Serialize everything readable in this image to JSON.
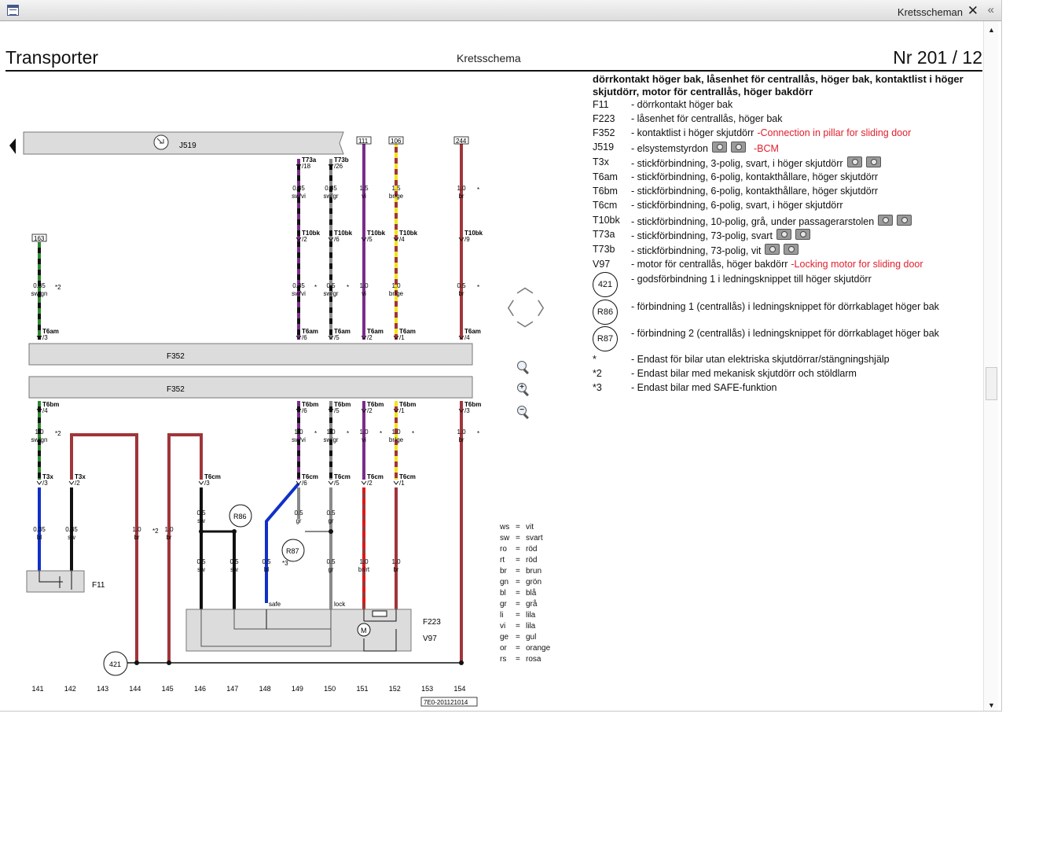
{
  "window": {
    "title": "Kretsscheman",
    "close_glyph": "✕",
    "collapse_glyph": "«"
  },
  "header": {
    "vehicle": "Transporter",
    "doc_type": "Kretsschema",
    "number": "Nr  201 / 12"
  },
  "legend": {
    "title": "dörrkontakt höger bak, låsenhet för centrallås, höger bak, kontaktlist i höger skjutdörr, motor för centrallås, höger bakdörr",
    "items": [
      {
        "code": "F11",
        "desc": "- dörrkontakt höger bak",
        "note": "",
        "cams": 0
      },
      {
        "code": "F223",
        "desc": "- låsenhet för centrallås, höger bak",
        "note": "",
        "cams": 0
      },
      {
        "code": "F352",
        "desc": "- kontaktlist i höger skjutdörr",
        "note": "-Connection in pillar for sliding door",
        "cams": 0
      },
      {
        "code": "J519",
        "desc": "- elsystemstyrdon",
        "note": "-BCM",
        "cams": 2
      },
      {
        "code": "T3x",
        "desc": "- stickförbindning, 3-polig, svart, i höger skjutdörr",
        "note": "",
        "cams": 2
      },
      {
        "code": "T6am",
        "desc": "- stickförbindning, 6-polig, kontakthållare, höger skjutdörr",
        "note": "",
        "cams": 0
      },
      {
        "code": "T6bm",
        "desc": "- stickförbindning, 6-polig, kontakthållare, höger skjutdörr",
        "note": "",
        "cams": 0
      },
      {
        "code": "T6cm",
        "desc": "- stickförbindning, 6-polig, svart, i höger skjutdörr",
        "note": "",
        "cams": 0
      },
      {
        "code": "T10bk",
        "desc": "- stickförbindning, 10-polig, grå, under passagerarstolen",
        "note": "",
        "cams": 2
      },
      {
        "code": "T73a",
        "desc": "- stickförbindning, 73-polig, svart",
        "note": "",
        "cams": 2
      },
      {
        "code": "T73b",
        "desc": "- stickförbindning, 73-polig, vit",
        "note": "",
        "cams": 2
      },
      {
        "code": "V97",
        "desc": "- motor för centrallås, höger bakdörr",
        "note": "-Locking motor for sliding door",
        "cams": 0
      }
    ],
    "circled": [
      {
        "code": "421",
        "desc": "- godsförbindning 1 i ledningsknippet till höger skjutdörr"
      },
      {
        "code": "R86",
        "desc": "- förbindning 1 (centrallås) i ledningsknippet för dörrkablaget höger bak"
      },
      {
        "code": "R87",
        "desc": "- förbindning 2 (centrallås) i ledningsknippet för dörrkablaget höger bak"
      }
    ],
    "footnotes": [
      {
        "mark": "*",
        "desc": "- Endast för bilar utan elektriska skjutdörrar/stängningshjälp"
      },
      {
        "mark": "*2",
        "desc": "- Endast bilar med mekanisk skjutdörr och stöldlarm"
      },
      {
        "mark": "*3",
        "desc": "- Endast bilar med SAFE-funktion"
      }
    ]
  },
  "color_key": [
    {
      "ab": "ws",
      "name": "vit"
    },
    {
      "ab": "sw",
      "name": "svart"
    },
    {
      "ab": "ro",
      "name": "röd"
    },
    {
      "ab": "rt",
      "name": "röd"
    },
    {
      "ab": "br",
      "name": "brun"
    },
    {
      "ab": "gn",
      "name": "grön"
    },
    {
      "ab": "bl",
      "name": "blå"
    },
    {
      "ab": "gr",
      "name": "grå"
    },
    {
      "ab": "li",
      "name": "lila"
    },
    {
      "ab": "vi",
      "name": "lila"
    },
    {
      "ab": "ge",
      "name": "gul"
    },
    {
      "ab": "or",
      "name": "orange"
    },
    {
      "ab": "rs",
      "name": "rosa"
    }
  ],
  "diagram": {
    "components": {
      "j519": "J519",
      "f352_top": "F352",
      "f352_bottom": "F352",
      "f11": "F11",
      "f223": "F223",
      "v97": "V97",
      "motor": "M",
      "r86": "R86",
      "r87": "R87",
      "ground": "421"
    },
    "refs": {
      "r163": "163",
      "r111": "111",
      "r106": "106",
      "r244": "244"
    },
    "top_connectors": {
      "t73a": {
        "name": "T73a",
        "pin": "/18"
      },
      "t73b": {
        "name": "T73b",
        "pin": "/26"
      }
    },
    "t10bk": [
      {
        "name": "T10bk",
        "pin": "/2"
      },
      {
        "name": "T10bk",
        "pin": "/6"
      },
      {
        "name": "T10bk",
        "pin": "/5"
      },
      {
        "name": "T10bk",
        "pin": "/4"
      },
      {
        "name": "T10bk",
        "pin": "/9"
      }
    ],
    "t6am": [
      {
        "name": "T6am",
        "pin": "/3"
      },
      {
        "name": "T6am",
        "pin": "/6"
      },
      {
        "name": "T6am",
        "pin": "/5"
      },
      {
        "name": "T6am",
        "pin": "/2"
      },
      {
        "name": "T6am",
        "pin": "/1"
      },
      {
        "name": "T6am",
        "pin": "/4"
      }
    ],
    "t6bm": [
      {
        "name": "T6bm",
        "pin": "/4"
      },
      {
        "name": "T6bm",
        "pin": "/6"
      },
      {
        "name": "T6bm",
        "pin": "/5"
      },
      {
        "name": "T6bm",
        "pin": "/2"
      },
      {
        "name": "T6bm",
        "pin": "/1"
      },
      {
        "name": "T6bm",
        "pin": "/3"
      }
    ],
    "t3x": [
      {
        "name": "T3x",
        "pin": "/3"
      },
      {
        "name": "T3x",
        "pin": "/2"
      }
    ],
    "t6cm": [
      {
        "name": "T6cm",
        "pin": "/3"
      },
      {
        "name": "T6cm",
        "pin": "/6"
      },
      {
        "name": "T6cm",
        "pin": "/5"
      },
      {
        "name": "T6cm",
        "pin": "/2"
      },
      {
        "name": "T6cm",
        "pin": "/1"
      }
    ],
    "wire_labels": {
      "a1": {
        "size": "0.35",
        "color": "sw/vi"
      },
      "a2": {
        "size": "0.35",
        "color": "sw/gr"
      },
      "a3": {
        "size": "1.5",
        "color": "vi"
      },
      "a4": {
        "size": "1.5",
        "color": "br/ge"
      },
      "a5": {
        "size": "1.0",
        "color": "br"
      },
      "b0": {
        "size": "0.35",
        "color": "sw/gn"
      },
      "b1": {
        "size": "0.35",
        "color": "sw/vi"
      },
      "b2": {
        "size": "0.5",
        "color": "sw/gr"
      },
      "b3": {
        "size": "1.0",
        "color": "vi"
      },
      "b4": {
        "size": "1.0",
        "color": "br/ge"
      },
      "b5": {
        "size": "0.5",
        "color": "br"
      },
      "c0": {
        "size": "1.0",
        "color": "sw/gn"
      },
      "c1": {
        "size": "1.0",
        "color": "sw/vi"
      },
      "c2": {
        "size": "1.0",
        "color": "sw/gr"
      },
      "c3": {
        "size": "1.0",
        "color": "vi"
      },
      "c4": {
        "size": "1.0",
        "color": "br/ge"
      },
      "c5": {
        "size": "1.0",
        "color": "br"
      },
      "d141": {
        "size": "0.35",
        "color": "bl"
      },
      "d142": {
        "size": "0.35",
        "color": "sw"
      },
      "d144": {
        "size": "1.0",
        "color": "br"
      },
      "d145": {
        "size": "1.0",
        "color": "br"
      },
      "d146a": {
        "size": "0.5",
        "color": "sw"
      },
      "d149": {
        "size": "0.5",
        "color": "gr"
      },
      "d150": {
        "size": "0.5",
        "color": "gr"
      },
      "e146": {
        "size": "0.5",
        "color": "sw"
      },
      "e147": {
        "size": "0.5",
        "color": "sw"
      },
      "e148": {
        "size": "0.5",
        "color": "bl"
      },
      "e150": {
        "size": "0.5",
        "color": "gr"
      },
      "e151": {
        "size": "1.0",
        "color": "br/rt"
      },
      "e152": {
        "size": "1.0",
        "color": "br"
      }
    },
    "marks": {
      "star": "*",
      "star2": "*2",
      "star3": "*3"
    },
    "pin_labels": {
      "safe": "safe",
      "lock": "lock"
    },
    "tracks": [
      "141",
      "142",
      "143",
      "144",
      "145",
      "146",
      "147",
      "148",
      "149",
      "150",
      "151",
      "152",
      "153",
      "154"
    ],
    "doc_id": "7E0-201121014"
  },
  "colors": {
    "br": "#a0353a",
    "vi": "#7b2c8a",
    "ge": "#f2e51e",
    "gn": "#2e8a2e",
    "bl": "#1030c8",
    "gr": "#8a8a8a",
    "sw": "#111111",
    "rt": "#e01818",
    "note": "#e0202e"
  }
}
